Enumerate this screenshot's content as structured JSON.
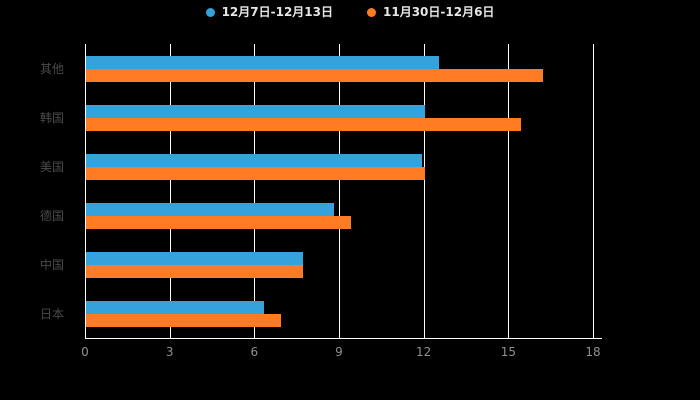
{
  "chart_data": {
    "type": "bar",
    "orientation": "horizontal",
    "title": "",
    "xlabel": "",
    "ylabel": "",
    "categories": [
      "其他",
      "韩国",
      "美国",
      "德国",
      "中国",
      "日本"
    ],
    "series": [
      {
        "name": "12月7日-12月13日",
        "color": "#36A2DB",
        "values": [
          12.5,
          12.0,
          11.9,
          8.8,
          7.7,
          6.3
        ]
      },
      {
        "name": "11月30日-12月6日",
        "color": "#FF7C24",
        "values": [
          16.2,
          15.4,
          12.0,
          9.4,
          7.7,
          6.9
        ]
      }
    ],
    "xlim": [
      0,
      18
    ],
    "xticks": [
      0,
      3,
      6,
      9,
      12,
      15,
      18
    ],
    "grid": true,
    "grid_color": "#ffffff",
    "background": "#000000",
    "legend_position": "top",
    "category_label_color": "#4a4a4a",
    "tick_label_color": "#8f8f8f"
  }
}
